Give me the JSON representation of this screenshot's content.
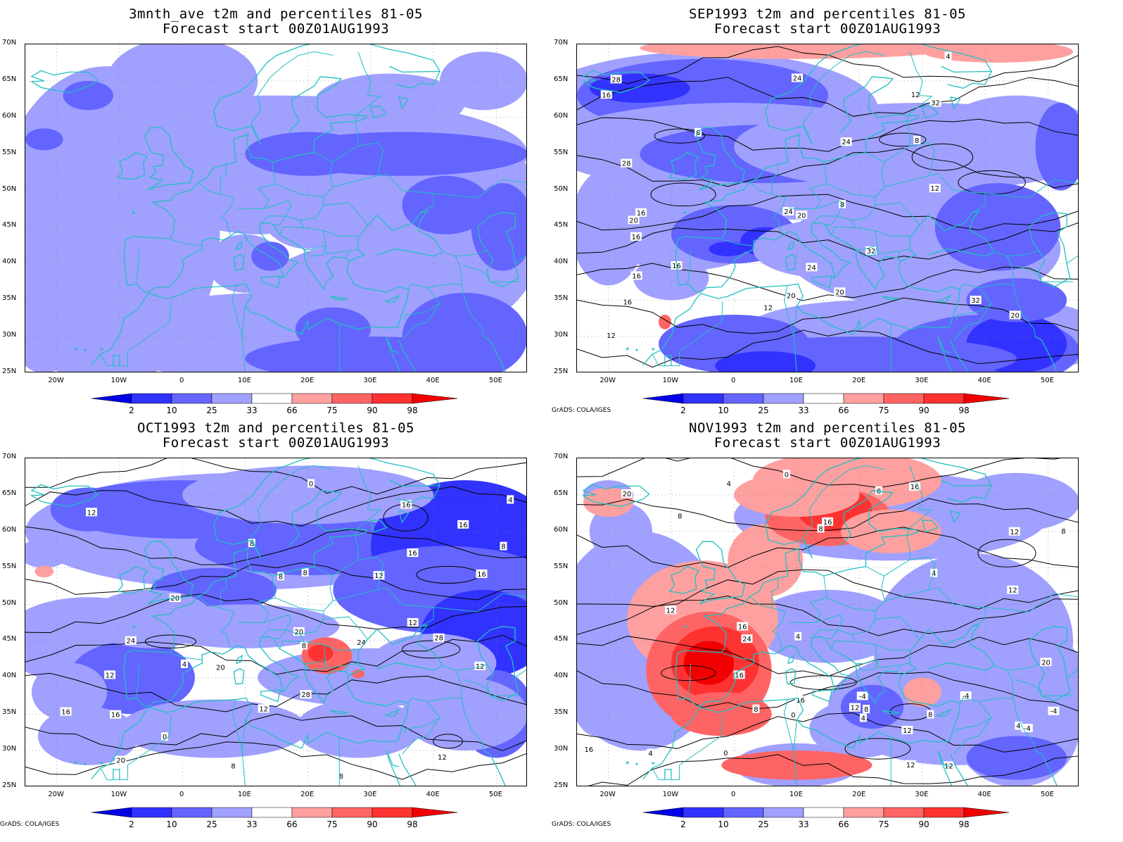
{
  "credit": "GrADS: COLA/IGES",
  "lat_labels": [
    "70N",
    "65N",
    "60N",
    "55N",
    "50N",
    "45N",
    "40N",
    "35N",
    "30N",
    "25N"
  ],
  "lon_labels": [
    "20W",
    "10W",
    "0",
    "10E",
    "20E",
    "30E",
    "40E",
    "50E"
  ],
  "colorbar": {
    "labels": [
      "2",
      "10",
      "25",
      "33",
      "66",
      "75",
      "90",
      "98"
    ],
    "colors": [
      "#0000e6",
      "#3232ff",
      "#6464ff",
      "#a0a0ff",
      "#ffffff",
      "#ffa0a0",
      "#ff6464",
      "#ff3232",
      "#f00000"
    ]
  },
  "colors": {
    "coast": "#20c0c0",
    "contour": "#000000",
    "grid": "#808080"
  },
  "panels": [
    {
      "title1": "3mnth_ave t2m and percentiles 81-05",
      "title2": "Forecast start 00Z01AUG1993",
      "show_credit": false,
      "contours": []
    },
    {
      "title1": "SEP1993 t2m and percentiles 81-05",
      "title2": "Forecast start 00Z01AUG1993",
      "show_credit": true,
      "contours": [
        "4",
        "8",
        "8",
        "12",
        "8",
        "12",
        "12",
        "12",
        "16",
        "16",
        "16",
        "16",
        "20",
        "16",
        "16",
        "20",
        "20",
        "20",
        "24",
        "20",
        "24",
        "28",
        "24",
        "24",
        "28",
        "32",
        "32",
        "32"
      ]
    },
    {
      "title1": "OCT1993 t2m and percentiles 81-05",
      "title2": "Forecast start 00Z01AUG1993",
      "show_credit": true,
      "contours": [
        "0",
        "0",
        "4",
        "8",
        "8",
        "4",
        "8",
        "12",
        "12",
        "8",
        "8",
        "16",
        "12",
        "12",
        "16",
        "8",
        "12",
        "16",
        "20",
        "16",
        "12",
        "16",
        "20",
        "20",
        "24",
        "20",
        "24",
        "28",
        "28",
        "8",
        "16",
        "12"
      ]
    },
    {
      "title1": "NOV1993 t2m and percentiles 81-05",
      "title2": "Forecast start 00Z01AUG1993",
      "show_credit": true,
      "contours": [
        "-4",
        "-4",
        "0",
        "4",
        "0",
        "4",
        "-4",
        "-4",
        "8",
        "8",
        "4",
        "12",
        "16",
        "8",
        "12",
        "12",
        "16",
        "16",
        "12",
        "16",
        "4",
        "8",
        "12",
        "8",
        "4",
        "8",
        "12",
        "16",
        "20",
        "0",
        "12",
        "16",
        "20",
        "24",
        "4",
        "8"
      ]
    }
  ]
}
